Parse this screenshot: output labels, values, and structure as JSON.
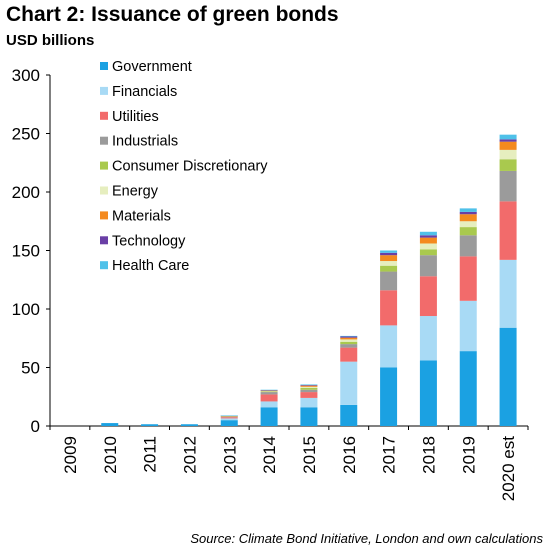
{
  "title": "Chart 2: Issuance of green bonds",
  "subtitle": "USD billions",
  "source": "Source: Climate Bond Initiative, London and own calculations",
  "chart_data": {
    "type": "bar",
    "stacked": true,
    "title": "Chart 2: Issuance of green bonds",
    "ylabel": "USD billions",
    "ylim": [
      0,
      300
    ],
    "yticks": [
      0,
      50,
      100,
      150,
      200,
      250,
      300
    ],
    "grid": false,
    "legend_position": "top-left",
    "categories": [
      "2009",
      "2010",
      "2011",
      "2012",
      "2013",
      "2014",
      "2015",
      "2016",
      "2017",
      "2018",
      "2019",
      "2020 est"
    ],
    "series": [
      {
        "name": "Government",
        "color": "#1ba1e2",
        "values": [
          0,
          2.5,
          1.5,
          1.5,
          5,
          16,
          16,
          18,
          50,
          56,
          64,
          84
        ]
      },
      {
        "name": "Financials",
        "color": "#a8daf5",
        "values": [
          0,
          0,
          0,
          0,
          1.5,
          5,
          8,
          37,
          36,
          38,
          43,
          58
        ]
      },
      {
        "name": "Utilities",
        "color": "#f26b6b",
        "values": [
          0,
          0,
          0,
          0,
          1,
          6,
          5,
          12,
          30,
          34,
          38,
          50
        ]
      },
      {
        "name": "Industrials",
        "color": "#9b9b9b",
        "values": [
          0,
          0,
          0,
          0,
          0.5,
          2,
          2,
          3,
          16,
          18,
          18,
          26
        ]
      },
      {
        "name": "Consumer Discretionary",
        "color": "#a9c94e",
        "values": [
          0,
          0,
          0,
          0,
          0.3,
          0.5,
          1.5,
          2,
          5,
          5,
          7,
          10
        ]
      },
      {
        "name": "Energy",
        "color": "#e6eebf",
        "values": [
          0,
          0,
          0,
          0,
          0.2,
          0.3,
          1,
          2,
          4,
          5,
          5,
          8
        ]
      },
      {
        "name": "Materials",
        "color": "#f48a1f",
        "values": [
          0,
          0,
          0,
          0,
          0.2,
          0.5,
          1,
          1.5,
          5,
          5,
          6,
          7
        ]
      },
      {
        "name": "Technology",
        "color": "#6a3fa6",
        "values": [
          0,
          0,
          0,
          0,
          0.2,
          0.3,
          0.5,
          1,
          2,
          2,
          2,
          2
        ]
      },
      {
        "name": "Health Care",
        "color": "#4fc1e9",
        "values": [
          0,
          0,
          0,
          0,
          0.1,
          0.4,
          0.5,
          0.5,
          2,
          3,
          3,
          4
        ]
      }
    ]
  }
}
